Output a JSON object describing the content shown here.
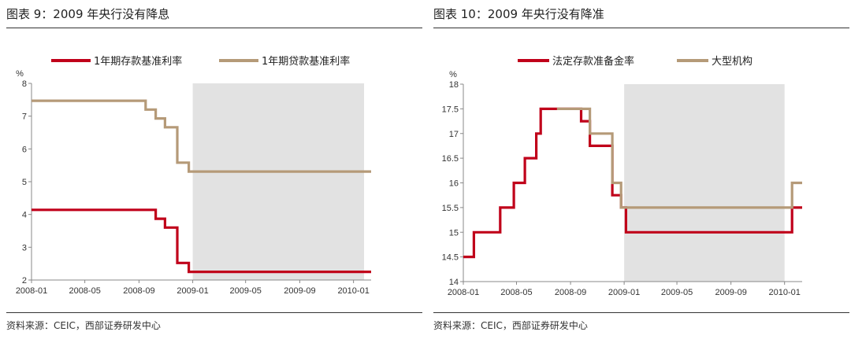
{
  "panels": [
    {
      "title": "图表 9：2009 年央行没有降息",
      "source": "资料来源：CEIC，西部证券研发中心",
      "colors": {
        "red": "#c0001a",
        "tan": "#b59a78",
        "shade": "#e2e2e2"
      },
      "chart_data": {
        "type": "line",
        "unit_label": "%",
        "xlim": [
          "2008-01-01",
          "2010-02-10"
        ],
        "ylim": [
          2,
          8
        ],
        "yticks": [
          2,
          3,
          4,
          5,
          6,
          7,
          8
        ],
        "xticks": [
          {
            "date": "2008-01-01",
            "label": "2008-01"
          },
          {
            "date": "2008-05-01",
            "label": "2008-05"
          },
          {
            "date": "2008-09-01",
            "label": "2008-09"
          },
          {
            "date": "2009-01-01",
            "label": "2009-01"
          },
          {
            "date": "2009-05-01",
            "label": "2009-05"
          },
          {
            "date": "2009-09-01",
            "label": "2009-09"
          },
          {
            "date": "2010-01-01",
            "label": "2010-01"
          }
        ],
        "shaded_range": [
          "2009-01-01",
          "2010-01-25"
        ],
        "series": [
          {
            "name": "1年期存款基准利率",
            "color": "red",
            "steps": [
              [
                "2008-01-01",
                4.14
              ],
              [
                "2008-10-09",
                3.87
              ],
              [
                "2008-10-30",
                3.6
              ],
              [
                "2008-11-27",
                2.52
              ],
              [
                "2008-12-23",
                2.25
              ],
              [
                "2010-02-10",
                2.25
              ]
            ]
          },
          {
            "name": "1年期贷款基准利率",
            "color": "tan",
            "steps": [
              [
                "2008-01-01",
                7.47
              ],
              [
                "2008-09-16",
                7.2
              ],
              [
                "2008-10-09",
                6.93
              ],
              [
                "2008-10-30",
                6.66
              ],
              [
                "2008-11-27",
                5.58
              ],
              [
                "2008-12-23",
                5.31
              ],
              [
                "2010-02-10",
                5.31
              ]
            ]
          }
        ]
      }
    },
    {
      "title": "图表 10：2009 年央行没有降准",
      "source": "资料来源：CEIC，西部证券研发中心",
      "colors": {
        "red": "#c0001a",
        "tan": "#b59a78",
        "shade": "#e2e2e2"
      },
      "chart_data": {
        "type": "line",
        "unit_label": "%",
        "xlim": [
          "2008-01-01",
          "2010-02-10"
        ],
        "ylim": [
          14,
          18
        ],
        "yticks": [
          14,
          14.5,
          15,
          15.5,
          16,
          16.5,
          17,
          17.5,
          18
        ],
        "xticks": [
          {
            "date": "2008-01-01",
            "label": "2008-01"
          },
          {
            "date": "2008-05-01",
            "label": "2008-05"
          },
          {
            "date": "2008-09-01",
            "label": "2008-09"
          },
          {
            "date": "2009-01-01",
            "label": "2009-01"
          },
          {
            "date": "2009-05-01",
            "label": "2009-05"
          },
          {
            "date": "2009-09-01",
            "label": "2009-09"
          },
          {
            "date": "2010-01-01",
            "label": "2010-01"
          }
        ],
        "shaded_range": [
          "2009-01-01",
          "2010-01-01"
        ],
        "series": [
          {
            "name": "法定存款准备金率",
            "color": "red",
            "steps": [
              [
                "2008-01-01",
                14.5
              ],
              [
                "2008-01-25",
                15
              ],
              [
                "2008-03-25",
                15.5
              ],
              [
                "2008-04-25",
                16
              ],
              [
                "2008-05-20",
                16.5
              ],
              [
                "2008-06-15",
                17
              ],
              [
                "2008-06-25",
                17.5
              ],
              [
                "2008-09-25",
                17.25
              ],
              [
                "2008-10-15",
                16.75
              ],
              [
                "2008-12-05",
                15.75
              ],
              [
                "2008-12-25",
                15.5
              ],
              [
                "2009-01-05",
                15
              ],
              [
                "2010-01-18",
                15.5
              ],
              [
                "2010-02-10",
                15.5
              ]
            ]
          },
          {
            "name": "大型机构",
            "color": "tan",
            "steps": [
              [
                "2008-08-01",
                17.5
              ],
              [
                "2008-10-15",
                17
              ],
              [
                "2008-12-05",
                16
              ],
              [
                "2008-12-25",
                15.5
              ],
              [
                "2010-01-18",
                16
              ],
              [
                "2010-02-10",
                16
              ]
            ]
          }
        ]
      }
    }
  ]
}
